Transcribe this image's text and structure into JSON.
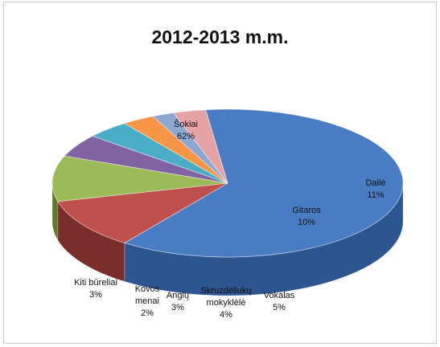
{
  "chart_data": {
    "type": "pie",
    "title": "2012-2013 m.m.",
    "slices": [
      {
        "label_lines": [
          "Šokiai"
        ],
        "value": 62,
        "value_text": "62%",
        "color": "#4a7cc4",
        "side": "#2d5590"
      },
      {
        "label_lines": [
          "Dailė"
        ],
        "value": 11,
        "value_text": "11%",
        "color": "#c0504d",
        "side": "#7a2e2c"
      },
      {
        "label_lines": [
          "Gitaros"
        ],
        "value": 10,
        "value_text": "10%",
        "color": "#9bbb59",
        "side": "#5f7a2c"
      },
      {
        "label_lines": [
          "Vokalas"
        ],
        "value": 5,
        "value_text": "5%",
        "color": "#8064a2",
        "side": "#4f3a6e"
      },
      {
        "label_lines": [
          "Skruzdėliukų",
          "mokyklėlė"
        ],
        "value": 4,
        "value_text": "4%",
        "color": "#4bacc6",
        "side": "#2e7f93"
      },
      {
        "label_lines": [
          "Anglų"
        ],
        "value": 3,
        "value_text": "3%",
        "color": "#f79646",
        "side": "#bf6a22"
      },
      {
        "label_lines": [
          "Kovos",
          "menai"
        ],
        "value": 2,
        "value_text": "2%",
        "color": "#8ea6d2",
        "side": "#6c84b4"
      },
      {
        "label_lines": [
          "Kiti būreliai"
        ],
        "value": 3,
        "value_text": "3%",
        "color": "#e6a3a5",
        "side": "#c78285"
      }
    ]
  }
}
